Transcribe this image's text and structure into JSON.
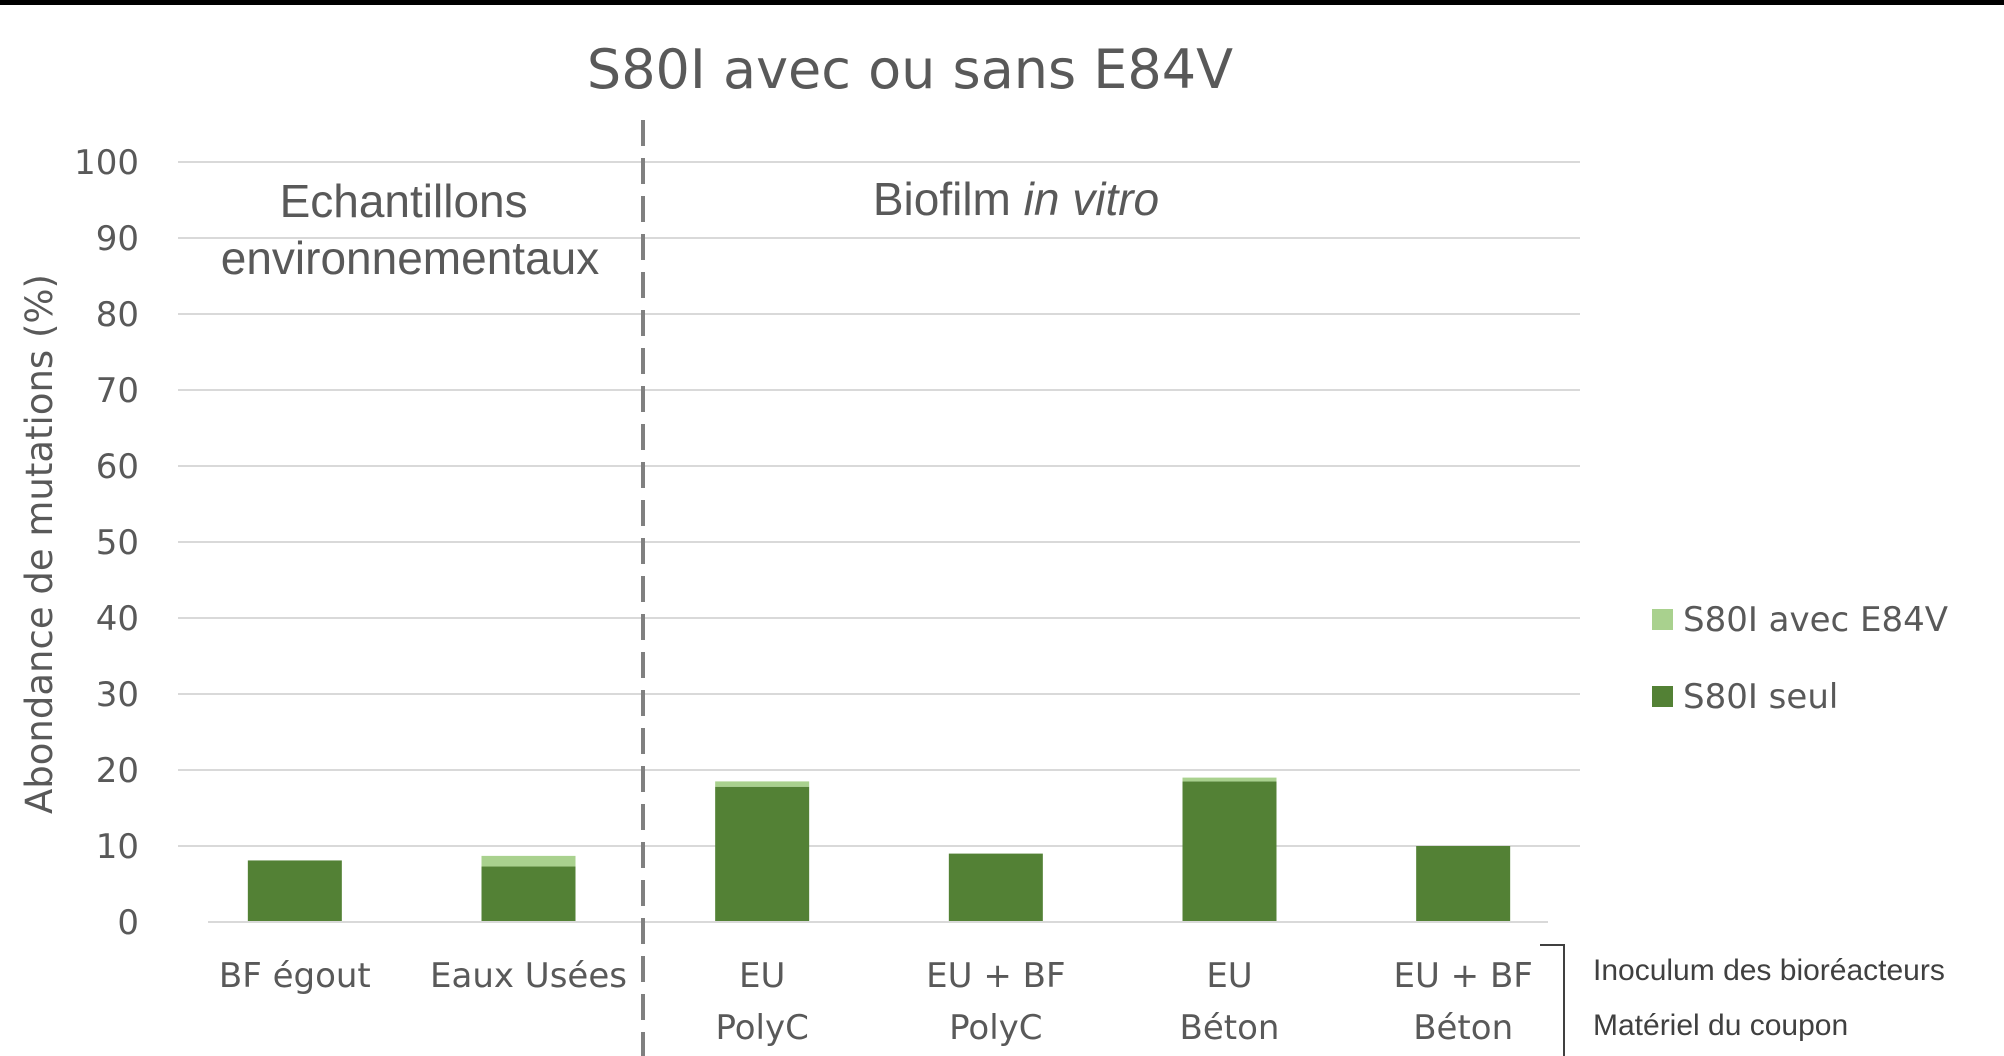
{
  "chart_data": {
    "type": "bar",
    "stacked": true,
    "title": "S80I avec ou sans E84V",
    "ylabel": "Abondance de mutations (%)",
    "ylim": [
      0,
      100
    ],
    "yticks": [
      0,
      10,
      20,
      30,
      40,
      50,
      60,
      70,
      80,
      90,
      100
    ],
    "grid": true,
    "legend_position": "right",
    "categories": [
      [
        "BF égout"
      ],
      [
        "Eaux Usées"
      ],
      [
        "EU",
        "PolyC"
      ],
      [
        "EU + BF",
        "PolyC"
      ],
      [
        "EU",
        "Béton"
      ],
      [
        "EU + BF",
        "Béton"
      ]
    ],
    "series": [
      {
        "name": "S80I seul",
        "color": "#538135",
        "values": [
          8.1,
          7.3,
          17.8,
          9.0,
          18.5,
          10.0
        ]
      },
      {
        "name": "S80I avec E84V",
        "color": "#a9d18e",
        "values": [
          0,
          1.4,
          0.7,
          0,
          0.5,
          0
        ]
      }
    ],
    "group_labels": [
      {
        "lines": [
          "Echantillons",
          "environnementaux"
        ],
        "italic_suffix": ""
      },
      {
        "lines": [
          "Biofilm "
        ],
        "italic_suffix": "in vitro"
      }
    ],
    "x_row_labels": [
      "Inoculum des bioréacteurs",
      "Matériel du coupon"
    ]
  }
}
